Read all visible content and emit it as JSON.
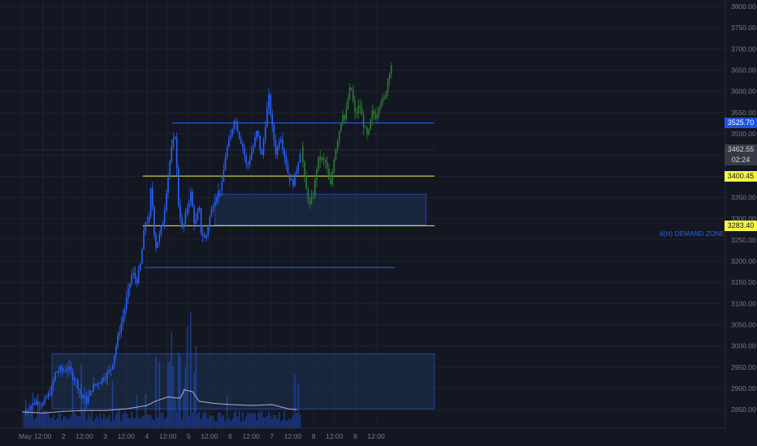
{
  "chart_data": {
    "type": "candlestick",
    "y_axis": {
      "ticks": [
        "3800.00",
        "3750.00",
        "3700.00",
        "3650.00",
        "3600.00",
        "3550.00",
        "3500.00",
        "3450.00",
        "3400.00",
        "3350.00",
        "3300.00",
        "3250.00",
        "3200.00",
        "3150.00",
        "3100.00",
        "3050.00",
        "3000.00",
        "2950.00",
        "2900.00",
        "2850.00"
      ],
      "min": 2830,
      "max": 3820
    },
    "x_axis": {
      "labels": [
        "May",
        "12:00",
        "2",
        "12:00",
        "3",
        "12:00",
        "4",
        "12:00",
        "5",
        "12:00",
        "6",
        "12:00",
        "7",
        "12:00",
        "8",
        "12:00",
        "9",
        "12:00"
      ]
    },
    "price_labels": {
      "resistance": "3525.70",
      "current_price": "3462.55",
      "countdown": "02:24",
      "level_upper": "3400.45",
      "level_lower": "3283.40"
    },
    "horizontal_lines": [
      {
        "price": 3525.7,
        "color": "#2962ff",
        "start_day": 3.6,
        "end_day": 9.9
      },
      {
        "price": 3400.45,
        "color": "#f5f547",
        "start_day": 2.9,
        "end_day": 9.9
      },
      {
        "price": 3283.4,
        "color": "#f5f547",
        "start_day": 2.9,
        "end_day": 9.9
      },
      {
        "price": 3185,
        "color": "#2962ff",
        "start_day": 2.95,
        "end_day": 8.95
      },
      {
        "price": 3462.55,
        "color": "#2a2e39",
        "start_day": 0,
        "end_day": 9.9
      }
    ],
    "zones": [
      {
        "name": "4(H) DEMAND ZONE",
        "top": 3358,
        "bottom": 3285,
        "start_day": 4.63,
        "end_day": 9.7
      },
      {
        "name": "",
        "top": 2982,
        "bottom": 2852,
        "start_day": 0.72,
        "end_day": 9.9
      }
    ],
    "price_path_actual": [
      [
        0.05,
        2840
      ],
      [
        0.2,
        2858
      ],
      [
        0.35,
        2870
      ],
      [
        0.5,
        2862
      ],
      [
        0.6,
        2880
      ],
      [
        0.7,
        2895
      ],
      [
        0.8,
        2935
      ],
      [
        0.9,
        2945
      ],
      [
        1.0,
        2940
      ],
      [
        1.1,
        2950
      ],
      [
        1.2,
        2935
      ],
      [
        1.3,
        2915
      ],
      [
        1.45,
        2880
      ],
      [
        1.55,
        2870
      ],
      [
        1.7,
        2905
      ],
      [
        1.85,
        2915
      ],
      [
        1.95,
        2925
      ],
      [
        2.05,
        2935
      ],
      [
        2.15,
        2950
      ],
      [
        2.3,
        3020
      ],
      [
        2.45,
        3080
      ],
      [
        2.55,
        3130
      ],
      [
        2.65,
        3175
      ],
      [
        2.75,
        3150
      ],
      [
        2.85,
        3195
      ],
      [
        2.95,
        3290
      ],
      [
        3.05,
        3300
      ],
      [
        3.1,
        3380
      ],
      [
        3.2,
        3230
      ],
      [
        3.3,
        3260
      ],
      [
        3.4,
        3300
      ],
      [
        3.5,
        3400
      ],
      [
        3.6,
        3470
      ],
      [
        3.68,
        3500
      ],
      [
        3.75,
        3340
      ],
      [
        3.85,
        3270
      ],
      [
        3.95,
        3320
      ],
      [
        4.05,
        3360
      ],
      [
        4.15,
        3280
      ],
      [
        4.25,
        3330
      ],
      [
        4.3,
        3270
      ],
      [
        4.4,
        3250
      ],
      [
        4.5,
        3300
      ],
      [
        4.6,
        3340
      ],
      [
        4.7,
        3360
      ],
      [
        4.8,
        3380
      ],
      [
        4.9,
        3460
      ],
      [
        5.0,
        3490
      ],
      [
        5.1,
        3540
      ],
      [
        5.2,
        3500
      ],
      [
        5.3,
        3470
      ],
      [
        5.4,
        3420
      ],
      [
        5.55,
        3470
      ],
      [
        5.65,
        3510
      ],
      [
        5.75,
        3440
      ],
      [
        5.85,
        3530
      ],
      [
        5.92,
        3590
      ],
      [
        6.0,
        3520
      ],
      [
        6.1,
        3450
      ],
      [
        6.2,
        3500
      ],
      [
        6.3,
        3450
      ],
      [
        6.4,
        3400
      ],
      [
        6.5,
        3380
      ],
      [
        6.6,
        3420
      ],
      [
        6.7,
        3470
      ]
    ],
    "price_path_projection": [
      [
        6.7,
        3470
      ],
      [
        6.8,
        3380
      ],
      [
        6.9,
        3330
      ],
      [
        7.0,
        3360
      ],
      [
        7.1,
        3440
      ],
      [
        7.2,
        3440
      ],
      [
        7.3,
        3430
      ],
      [
        7.4,
        3370
      ],
      [
        7.5,
        3450
      ],
      [
        7.6,
        3500
      ],
      [
        7.7,
        3550
      ],
      [
        7.75,
        3530
      ],
      [
        7.85,
        3600
      ],
      [
        7.9,
        3610
      ],
      [
        8.0,
        3540
      ],
      [
        8.1,
        3570
      ],
      [
        8.2,
        3520
      ],
      [
        8.3,
        3490
      ],
      [
        8.4,
        3550
      ],
      [
        8.5,
        3540
      ],
      [
        8.6,
        3580
      ],
      [
        8.7,
        3580
      ],
      [
        8.8,
        3640
      ],
      [
        8.9,
        3675
      ]
    ],
    "volume_avg": [
      [
        0.0,
        2845
      ],
      [
        0.5,
        2842
      ],
      [
        1.0,
        2846
      ],
      [
        1.5,
        2848
      ],
      [
        2.0,
        2848
      ],
      [
        2.5,
        2852
      ],
      [
        3.0,
        2860
      ],
      [
        3.2,
        2870
      ],
      [
        3.5,
        2880
      ],
      [
        3.8,
        2877
      ],
      [
        3.9,
        2897
      ],
      [
        4.1,
        2892
      ],
      [
        4.25,
        2870
      ],
      [
        4.6,
        2865
      ],
      [
        5.0,
        2862
      ],
      [
        5.5,
        2860
      ],
      [
        6.0,
        2862
      ],
      [
        6.4,
        2852
      ],
      [
        6.6,
        2850
      ]
    ]
  },
  "colors": {
    "background": "#131722",
    "grid": "#1e222d",
    "axis_text": "#787b86",
    "candle_actual": "#2962ff",
    "candle_projection": "#2e7d32",
    "volume": "#2962ff",
    "volume_avg": "#d1d4dc",
    "zone_fill": "#1e3a5f",
    "zone_border": "#2962ff",
    "yellow": "#f5f547"
  }
}
